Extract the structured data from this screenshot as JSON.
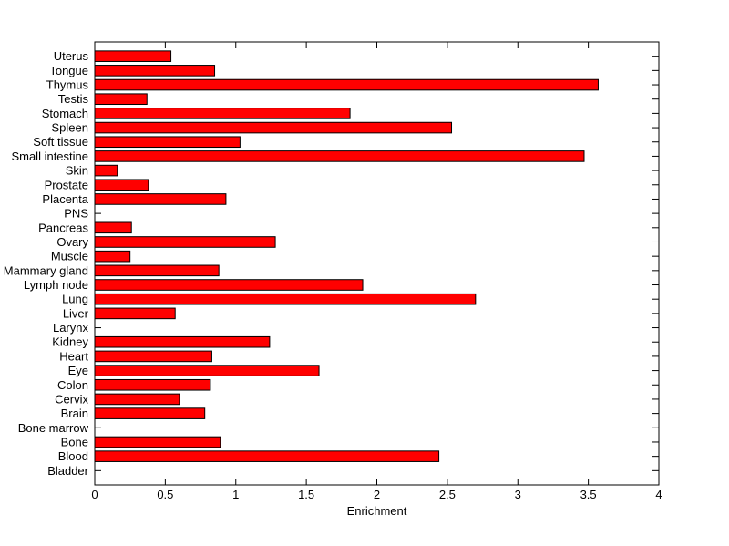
{
  "chart_data": {
    "type": "bar",
    "orientation": "horizontal",
    "title": "",
    "xlabel": "Enrichment",
    "ylabel": "",
    "xlim": [
      0,
      4
    ],
    "xticks": [
      0,
      0.5,
      1,
      1.5,
      2,
      2.5,
      3,
      3.5,
      4
    ],
    "xtick_labels": [
      "0",
      "0.5",
      "1",
      "1.5",
      "2",
      "2.5",
      "3",
      "3.5",
      "4"
    ],
    "categories": [
      "Uterus",
      "Tongue",
      "Thymus",
      "Testis",
      "Stomach",
      "Spleen",
      "Soft tissue",
      "Small intestine",
      "Skin",
      "Prostate",
      "Placenta",
      "PNS",
      "Pancreas",
      "Ovary",
      "Muscle",
      "Mammary gland",
      "Lymph node",
      "Lung",
      "Liver",
      "Larynx",
      "Kidney",
      "Heart",
      "Eye",
      "Colon",
      "Cervix",
      "Brain",
      "Bone marrow",
      "Bone",
      "Blood",
      "Bladder"
    ],
    "values": [
      0.54,
      0.85,
      3.57,
      0.37,
      1.81,
      2.53,
      1.03,
      3.47,
      0.16,
      0.38,
      0.93,
      0,
      0.26,
      1.28,
      0.25,
      0.88,
      1.9,
      2.7,
      0.57,
      0,
      1.24,
      0.83,
      1.59,
      0.82,
      0.6,
      0.78,
      0,
      0.89,
      2.44,
      0
    ],
    "bar_color": "#ff0000",
    "bar_edge_color": "#000000",
    "axis_color": "#000000",
    "background_color": "#ffffff",
    "grid": false,
    "legend": null,
    "ticks_direction": "in",
    "box": true
  }
}
